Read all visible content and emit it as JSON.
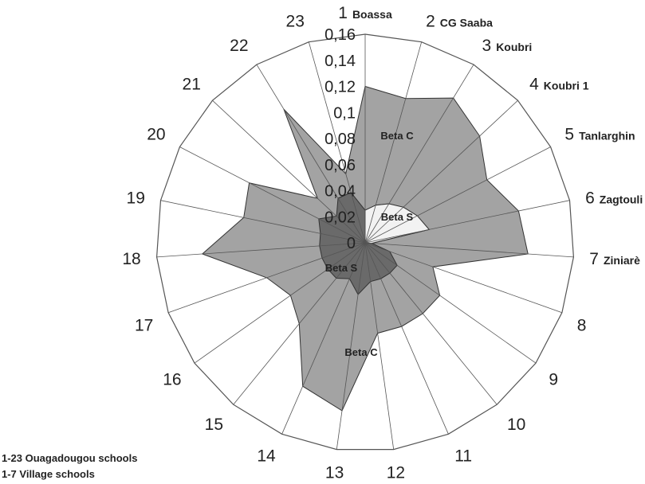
{
  "chart_data": {
    "type": "radar",
    "spokes": [
      {
        "num": "1",
        "name": "Boassa"
      },
      {
        "num": "2",
        "name": "CG Saaba"
      },
      {
        "num": "3",
        "name": "Koubri"
      },
      {
        "num": "4",
        "name": "Koubri 1"
      },
      {
        "num": "5",
        "name": "Tanlarghin"
      },
      {
        "num": "6",
        "name": "Zagtouli"
      },
      {
        "num": "7",
        "name": "Ziniarè"
      },
      {
        "num": "8",
        "name": ""
      },
      {
        "num": "9",
        "name": ""
      },
      {
        "num": "10",
        "name": ""
      },
      {
        "num": "11",
        "name": ""
      },
      {
        "num": "12",
        "name": ""
      },
      {
        "num": "13",
        "name": ""
      },
      {
        "num": "14",
        "name": ""
      },
      {
        "num": "15",
        "name": ""
      },
      {
        "num": "16",
        "name": ""
      },
      {
        "num": "17",
        "name": ""
      },
      {
        "num": "18",
        "name": ""
      },
      {
        "num": "19",
        "name": ""
      },
      {
        "num": "20",
        "name": ""
      },
      {
        "num": "21",
        "name": ""
      },
      {
        "num": "22",
        "name": ""
      },
      {
        "num": "23",
        "name": ""
      }
    ],
    "radial_ticks": [
      "0",
      "0,02",
      "0,04",
      "0,06",
      "0,08",
      "0,1",
      "0,12",
      "0,14",
      "0,16"
    ],
    "rlim": [
      0,
      0.16
    ],
    "series": [
      {
        "name": "Beta C",
        "label_positions": [
          "upper-right",
          "lower-middle"
        ],
        "color": "#a3a3a3",
        "values": [
          0.12,
          0.115,
          0.13,
          0.12,
          0.105,
          0.12,
          0.125,
          0.055,
          0.07,
          0.07,
          0.07,
          0.07,
          0.13,
          0.12,
          0.08,
          0.07,
          0.08,
          0.125,
          0.095,
          0.1,
          0.05,
          0.12,
          0.055
        ]
      },
      {
        "name": "Beta S",
        "label_positions": [
          "upper-right",
          "lower-middle"
        ],
        "color": "#6a6a6a",
        "values": [
          0.025,
          0.03,
          0.035,
          0.04,
          0.045,
          0.05,
          0.005,
          0.02,
          0.03,
          0.03,
          0.03,
          0.03,
          0.04,
          0.03,
          0.035,
          0.035,
          0.035,
          0.035,
          0.035,
          0.04,
          0.03,
          0.04,
          0.04
        ]
      }
    ],
    "village_highlight": {
      "spokes": [
        1,
        2,
        3,
        4,
        5,
        6,
        7
      ],
      "beta_s_color": "#f2f2f2"
    },
    "legend": [
      "1-23 Ouagadougou schools",
      "1-7  Village schools"
    ]
  }
}
